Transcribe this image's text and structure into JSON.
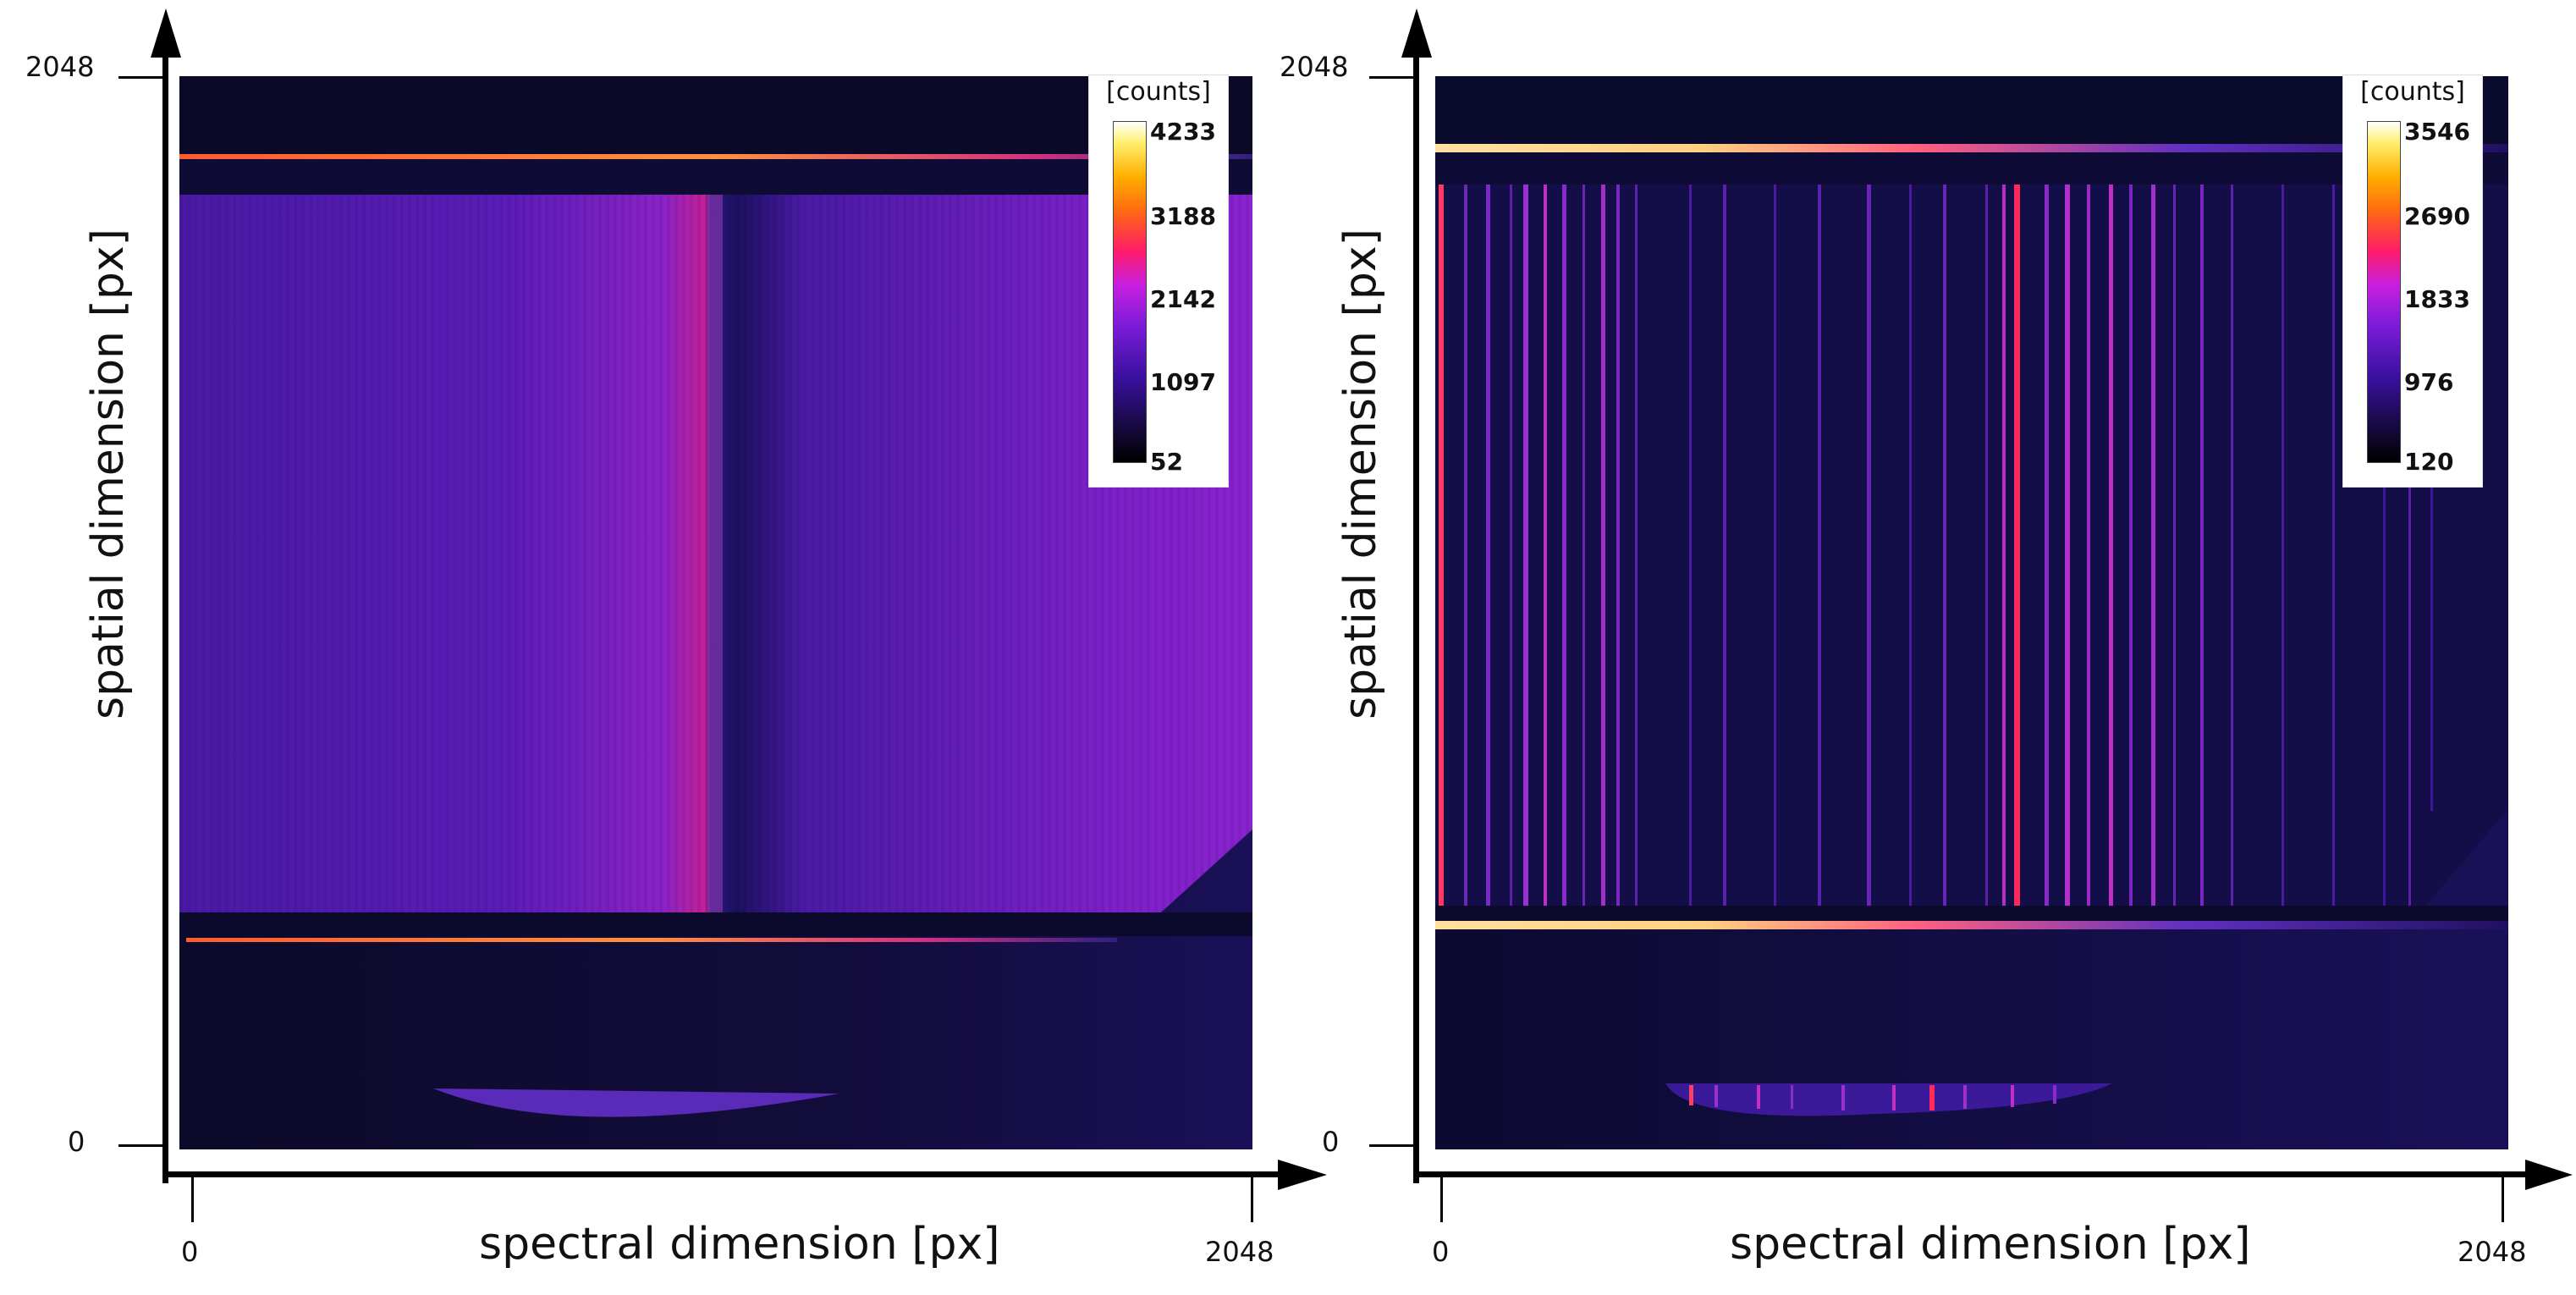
{
  "panels": [
    {
      "id": "left",
      "y_axis_label": "spatial dimension [px]",
      "x_axis_label": "spectral dimension [px]",
      "y_min": "0",
      "y_max": "2048",
      "x_min": "0",
      "x_max": "2048",
      "colorbar": {
        "unit": "[counts]",
        "values": [
          "4233",
          "3188",
          "2142",
          "1097",
          "52"
        ]
      }
    },
    {
      "id": "right",
      "y_axis_label": "spatial dimension [px]",
      "x_axis_label": "spectral dimension [px]",
      "y_min": "0",
      "y_max": "2048",
      "x_min": "0",
      "x_max": "2048",
      "colorbar": {
        "unit": "[counts]",
        "values": [
          "3546",
          "2690",
          "1833",
          "976",
          "120"
        ]
      }
    }
  ],
  "colors": {
    "background": "#ffffff",
    "axis": "#000000"
  }
}
